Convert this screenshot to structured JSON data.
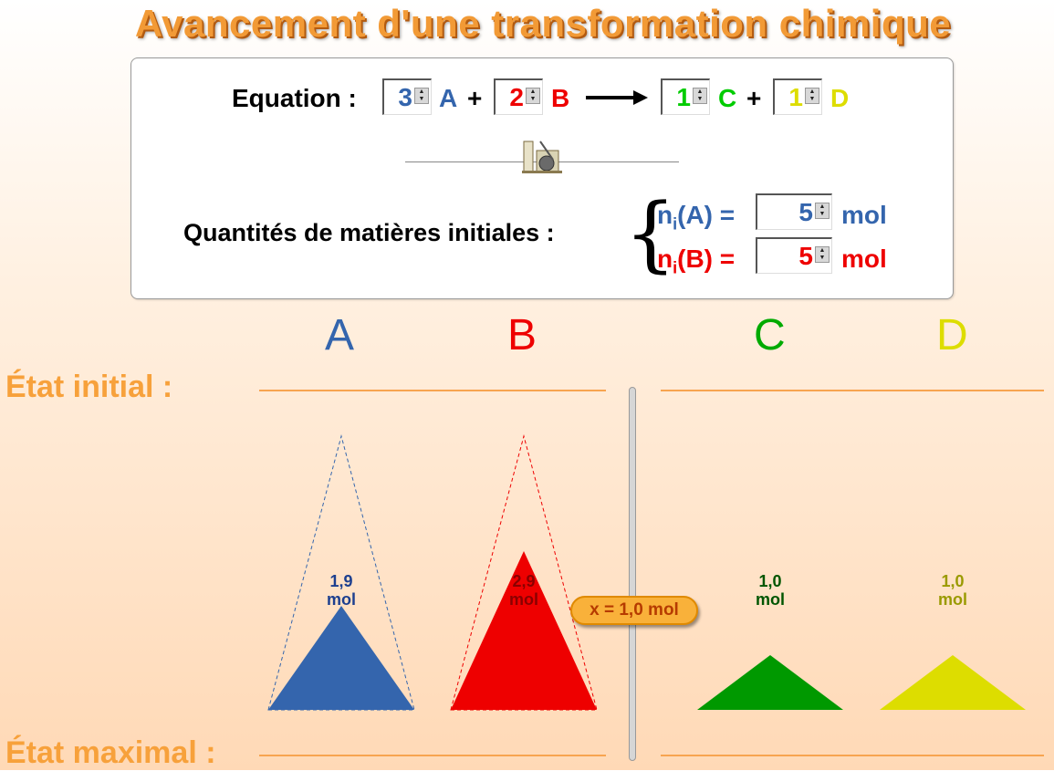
{
  "title": "Avancement d'une transformation chimique",
  "equation": {
    "label": "Equation :",
    "coef_a": "3",
    "species_a": "A",
    "plus1": "+",
    "coef_b": "2",
    "species_b": "B",
    "coef_c": "1",
    "species_c": "C",
    "plus2": "+",
    "coef_d": "1",
    "species_d": "D"
  },
  "initial_quantities": {
    "label": "Quantités de matières initiales :",
    "na_label_base": "n",
    "na_label_sub": "i",
    "na_label_rest": "(A) =",
    "na_value": "5",
    "na_unit": "mol",
    "nb_label_base": "n",
    "nb_label_sub": "i",
    "nb_label_rest": "(B) =",
    "nb_value": "5",
    "nb_unit": "mol"
  },
  "columns": {
    "a": "A",
    "b": "B",
    "c": "C",
    "d": "D"
  },
  "states": {
    "initial": "État initial :",
    "maximal": "État maximal :"
  },
  "amounts": {
    "a_value": "1,9",
    "a_unit": "mol",
    "b_value": "2,9",
    "b_unit": "mol",
    "c_value": "1,0",
    "c_unit": "mol",
    "d_value": "1,0",
    "d_unit": "mol"
  },
  "advancement": "x = 1,0 mol",
  "colors": {
    "a": "#3465ad",
    "b": "#ee0000",
    "c": "#009900",
    "d": "#dddd00",
    "a_text": "#1d3f8f",
    "b_text": "#8a0000",
    "c_text": "#005500",
    "d_text": "#9a9a00"
  },
  "reagent_levels": {
    "a_initial": 5,
    "a_current": 1.9,
    "b_initial": 5,
    "b_current": 2.9,
    "c_current": 1.0,
    "d_current": 1.0
  }
}
